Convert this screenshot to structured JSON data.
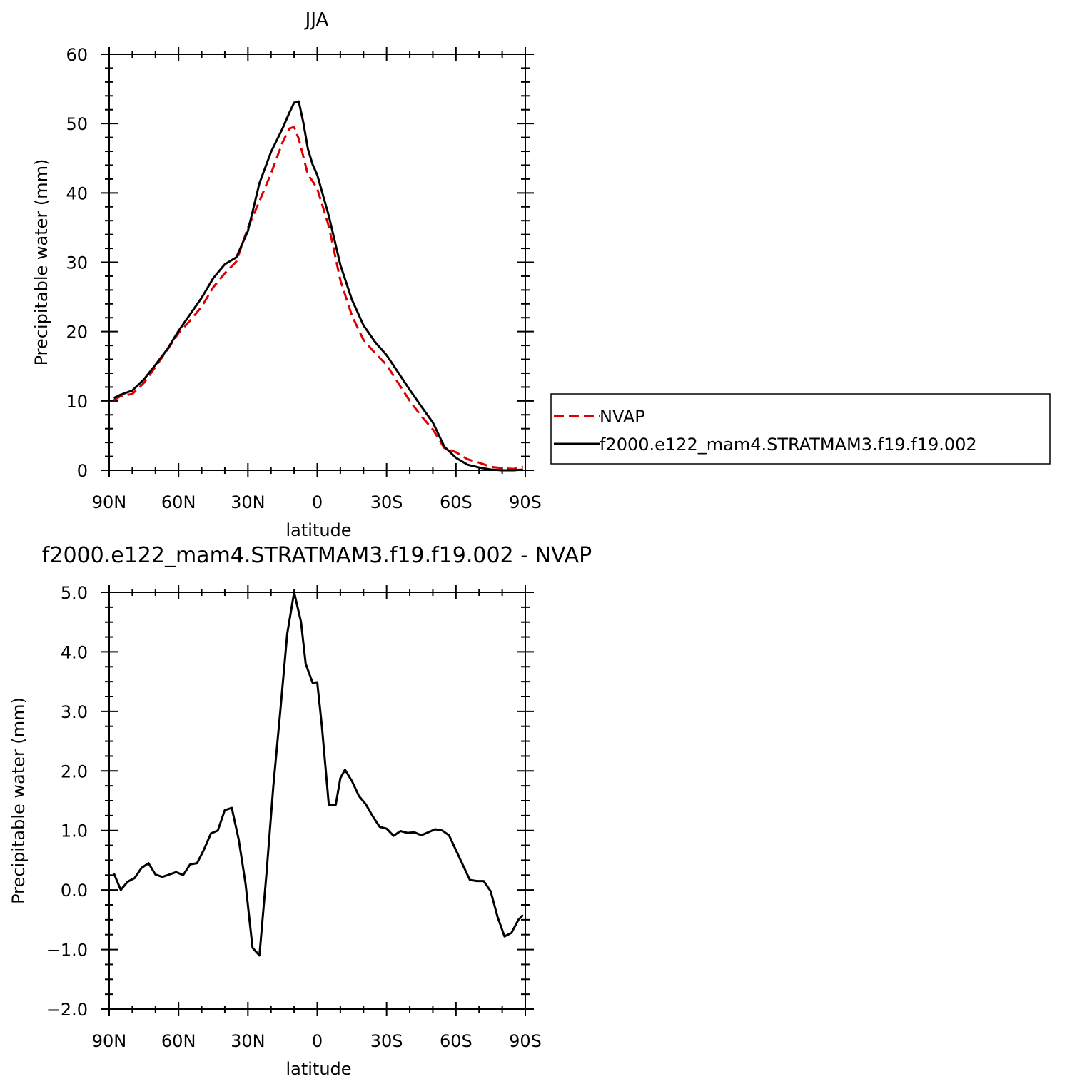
{
  "chart_data": [
    {
      "type": "line",
      "title": "JJA",
      "xlabel": "latitude",
      "ylabel": "Precipitable water (mm)",
      "xlim": [
        90,
        -90
      ],
      "ylim": [
        0,
        60
      ],
      "xticks": [
        90,
        60,
        30,
        0,
        -30,
        -60,
        -90
      ],
      "xtick_labels": [
        "90N",
        "60N",
        "30N",
        "0",
        "30S",
        "60S",
        "90S"
      ],
      "yticks": [
        0,
        10,
        20,
        30,
        40,
        50,
        60
      ],
      "ytick_labels": [
        "0",
        "10",
        "20",
        "30",
        "40",
        "50",
        "60"
      ],
      "legend": {
        "placement": "right",
        "entries": [
          "NVAP",
          "f2000.e122_mam4.STRATMAM3.f19.f19.002"
        ]
      },
      "series": [
        {
          "name": "NVAP",
          "color": "#dd0000",
          "dash": true,
          "x": [
            88,
            85,
            80,
            75,
            70,
            65,
            60,
            55,
            50,
            45,
            40,
            35,
            30,
            25,
            20,
            15,
            12,
            10,
            8,
            6,
            4,
            2,
            0,
            -5,
            -10,
            -15,
            -20,
            -25,
            -30,
            -35,
            -40,
            -45,
            -50,
            -55,
            -60,
            -65,
            -70,
            -75,
            -80,
            -85,
            -89
          ],
          "values": [
            10.1,
            10.7,
            11.0,
            12.6,
            14.9,
            17.3,
            19.8,
            21.6,
            23.6,
            26.4,
            28.4,
            30.1,
            35.0,
            38.8,
            42.8,
            47.3,
            49.3,
            49.5,
            47.8,
            45.2,
            42.6,
            41.7,
            40.6,
            35.2,
            27.4,
            22.3,
            18.8,
            16.9,
            15.2,
            12.6,
            10.0,
            7.8,
            5.9,
            3.2,
            2.6,
            1.6,
            1.1,
            0.5,
            0.3,
            0.2,
            0.5
          ]
        },
        {
          "name": "f2000.e122_mam4.STRATMAM3.f19.f19.002",
          "color": "#000000",
          "dash": false,
          "x": [
            88,
            85,
            80,
            75,
            70,
            65,
            60,
            55,
            50,
            45,
            40,
            35,
            30,
            25,
            20,
            15,
            12,
            10,
            8,
            6,
            4,
            2,
            0,
            -5,
            -10,
            -15,
            -20,
            -25,
            -30,
            -35,
            -40,
            -45,
            -50,
            -55,
            -60,
            -65,
            -70,
            -75,
            -80,
            -85,
            -89
          ],
          "values": [
            10.4,
            10.9,
            11.5,
            13.1,
            15.2,
            17.4,
            20.1,
            22.5,
            24.9,
            27.7,
            29.7,
            30.7,
            34.5,
            41.4,
            45.9,
            49.3,
            51.6,
            53.0,
            53.2,
            50.1,
            46.3,
            44.1,
            42.6,
            36.7,
            29.6,
            24.6,
            20.9,
            18.5,
            16.6,
            14.1,
            11.6,
            9.2,
            6.9,
            3.4,
            1.8,
            0.8,
            0.4,
            0.1,
            0.0,
            0.0,
            0.1
          ]
        }
      ]
    },
    {
      "type": "line",
      "title": "f2000.e122_mam4.STRATMAM3.f19.f19.002 - NVAP",
      "xlabel": "latitude",
      "ylabel": "Precipitable water (mm)",
      "xlim": [
        90,
        -90
      ],
      "ylim": [
        -2.0,
        5.0
      ],
      "xticks": [
        90,
        60,
        30,
        0,
        -30,
        -60,
        -90
      ],
      "xtick_labels": [
        "90N",
        "60N",
        "30N",
        "0",
        "30S",
        "60S",
        "90S"
      ],
      "yticks": [
        -2.0,
        -1.0,
        0.0,
        1.0,
        2.0,
        3.0,
        4.0,
        5.0
      ],
      "ytick_labels": [
        "−2.0",
        "−1.0",
        "0.0",
        "1.0",
        "2.0",
        "3.0",
        "4.0",
        "5.0"
      ],
      "series": [
        {
          "color": "#000000",
          "dash": false,
          "x": [
            88,
            85,
            82,
            79,
            76,
            73,
            70,
            67,
            64,
            61,
            58,
            55,
            52,
            49,
            46,
            43,
            40,
            37,
            34,
            31,
            28,
            25,
            22,
            19,
            16,
            13,
            10,
            7,
            5,
            2,
            0,
            -2,
            -5,
            -8,
            -10,
            -12,
            -15,
            -18,
            -21,
            -24,
            -27,
            -30,
            -33,
            -36,
            -39,
            -42,
            -45,
            -48,
            -51,
            -54,
            -57,
            -60,
            -63,
            -66,
            -69,
            -72,
            -75,
            -78,
            -81,
            -84,
            -87,
            -89
          ],
          "values": [
            0.28,
            0.0,
            0.14,
            0.2,
            0.37,
            0.45,
            0.26,
            0.22,
            0.26,
            0.3,
            0.25,
            0.43,
            0.45,
            0.68,
            0.95,
            1.0,
            1.34,
            1.38,
            0.85,
            0.1,
            -0.97,
            -1.1,
            0.25,
            1.75,
            3.0,
            4.3,
            5.0,
            4.5,
            3.8,
            3.48,
            3.49,
            2.75,
            1.43,
            1.43,
            1.88,
            2.02,
            1.83,
            1.58,
            1.44,
            1.24,
            1.06,
            1.03,
            0.91,
            0.99,
            0.96,
            0.97,
            0.92,
            0.97,
            1.02,
            1.0,
            0.92,
            0.67,
            0.42,
            0.17,
            0.15,
            0.15,
            -0.02,
            -0.45,
            -0.78,
            -0.72,
            -0.5,
            -0.42
          ]
        }
      ]
    }
  ]
}
